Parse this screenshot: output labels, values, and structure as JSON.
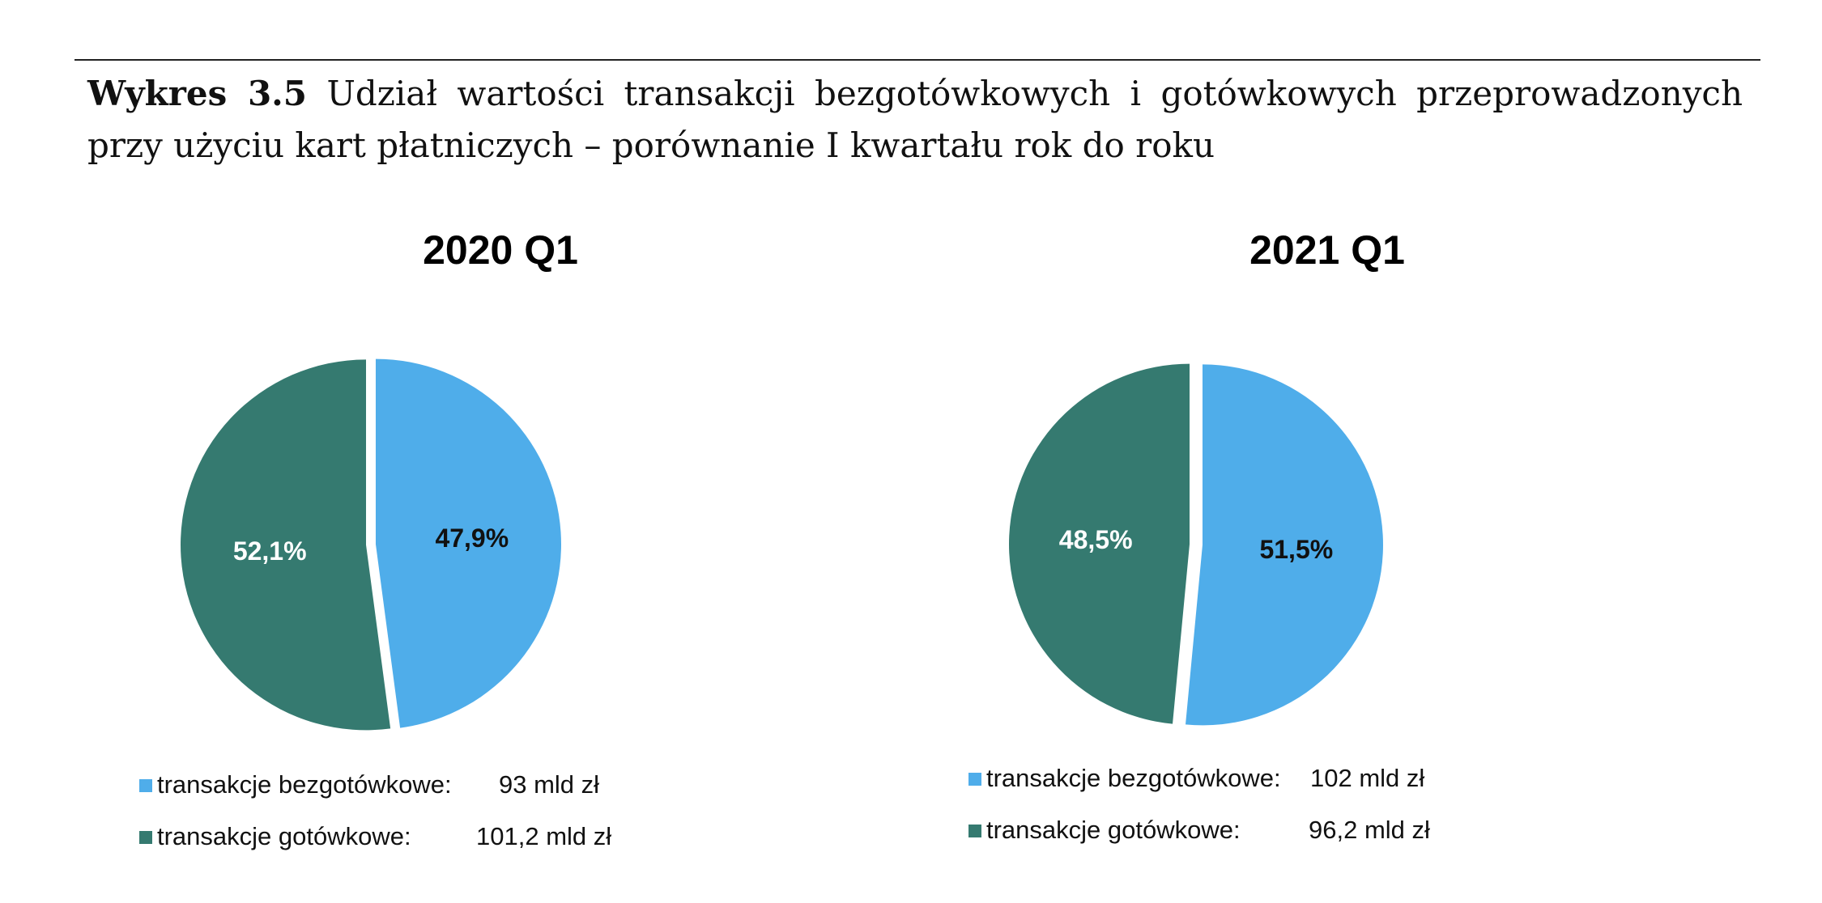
{
  "caption": {
    "label": "Wykres 3.5",
    "text": "Udział wartości transakcji bezgotówkowych i gotówkowych przeprowadzonych przy użyciu kart płatniczych – porównanie I kwartału rok do roku"
  },
  "colors": {
    "bezgotowkowe": "#4fadea",
    "gotowkowe": "#357a70"
  },
  "chart_data": [
    {
      "type": "pie",
      "title": "2020 Q1",
      "slices": [
        {
          "label": "transakcje bezgotówkowe:",
          "value": 47.9,
          "value_label": "47,9%",
          "amount_label": "93 mld zł"
        },
        {
          "label": "transakcje gotówkowe:",
          "value": 52.1,
          "value_label": "52,1%",
          "amount_label": "101,2 mld zł"
        }
      ],
      "legend": "bottom",
      "exploded": true
    },
    {
      "type": "pie",
      "title": "2021 Q1",
      "slices": [
        {
          "label": "transakcje bezgotówkowe:",
          "value": 51.5,
          "value_label": "51,5%",
          "amount_label": "102 mld zł"
        },
        {
          "label": "transakcje gotówkowe:",
          "value": 48.5,
          "value_label": "48,5%",
          "amount_label": "96,2 mld zł"
        }
      ],
      "legend": "bottom",
      "exploded": true
    }
  ]
}
